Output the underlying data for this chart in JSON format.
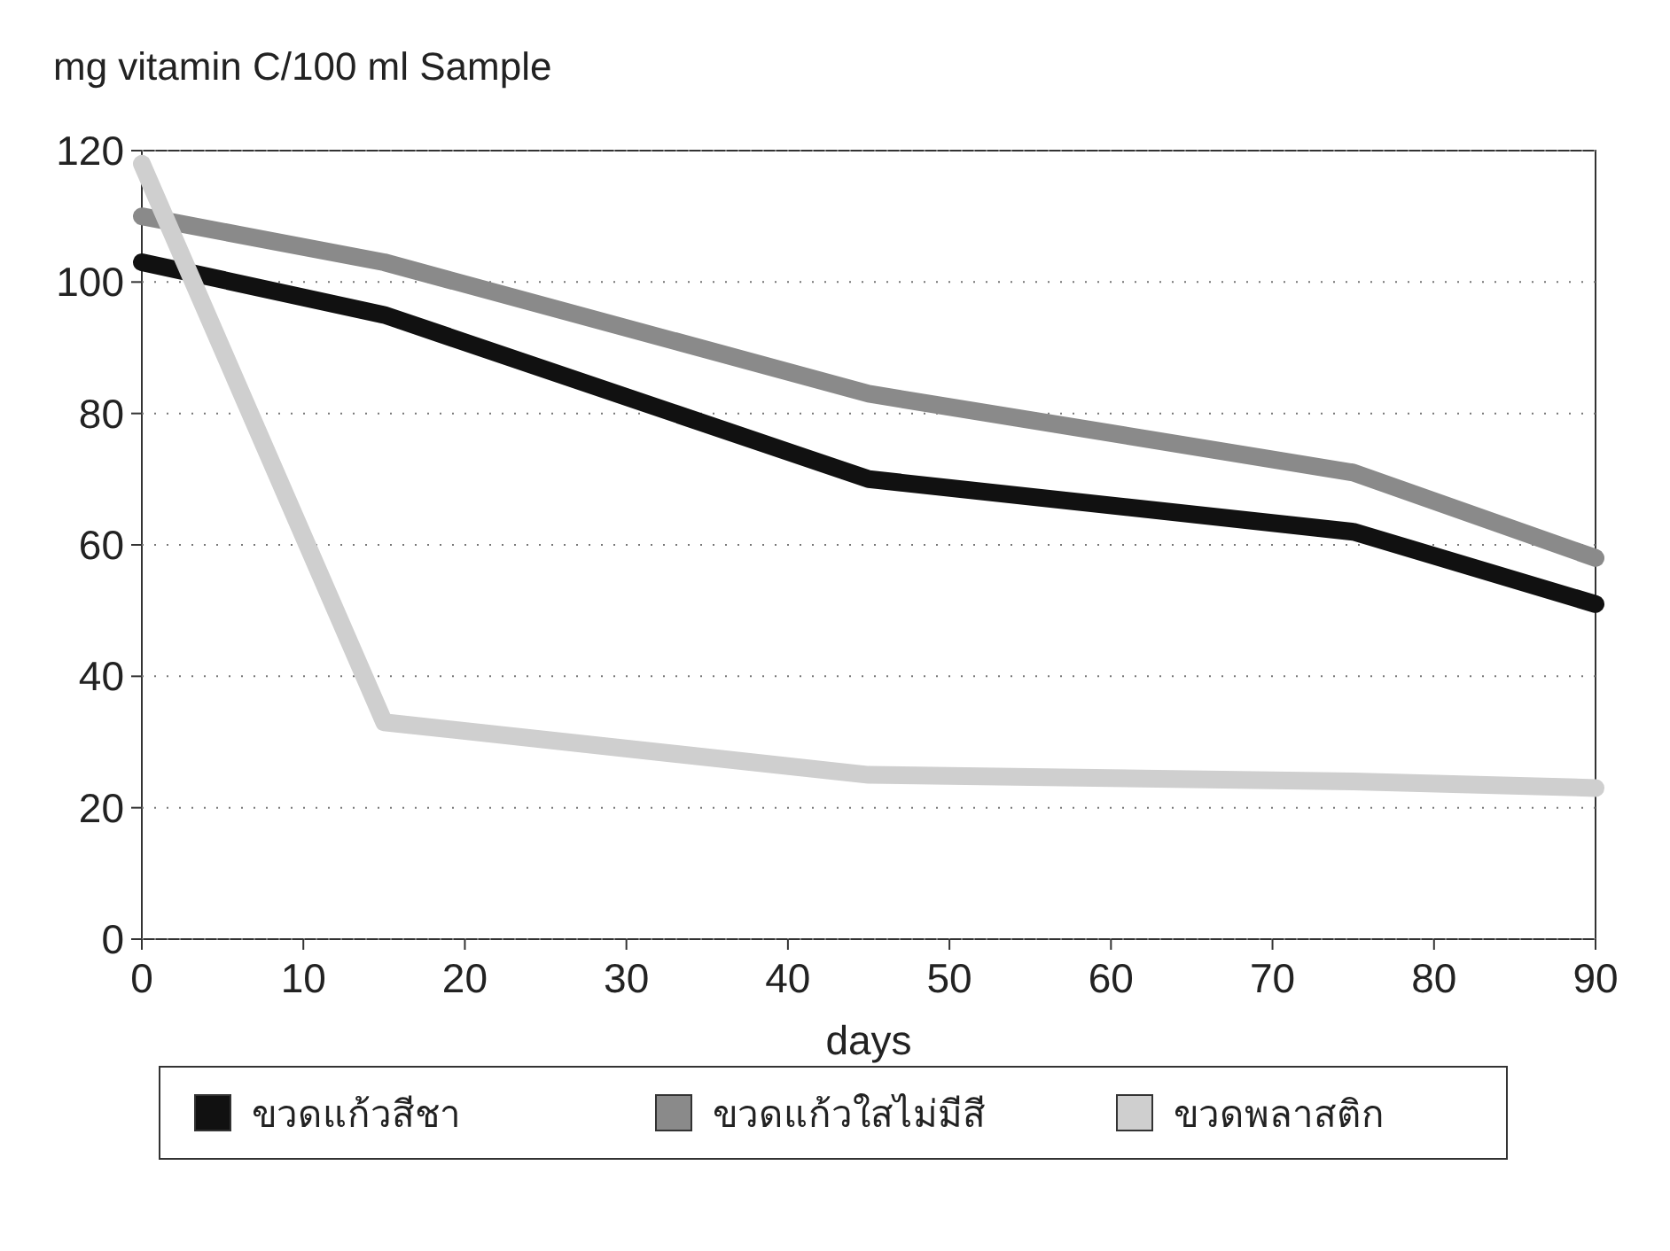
{
  "chart_data": {
    "type": "line",
    "ylabel": "mg vitamin C/100 ml Sample",
    "xlabel": "days",
    "x": [
      0,
      15,
      45,
      75,
      90
    ],
    "series": [
      {
        "name": "ขวดแก้วสีชา",
        "color": "#111111",
        "values": [
          103,
          95,
          70,
          62,
          51
        ]
      },
      {
        "name": "ขวดแก้วใสไม่มีสี",
        "color": "#8a8a8a",
        "values": [
          110,
          103,
          83,
          71,
          58
        ]
      },
      {
        "name": "ขวดพลาสติก",
        "color": "#cfcfcf",
        "values": [
          118,
          33,
          25,
          24,
          23
        ]
      }
    ],
    "xlim": [
      0,
      90
    ],
    "ylim": [
      0,
      120
    ],
    "xticks": [
      0,
      10,
      20,
      30,
      40,
      50,
      60,
      70,
      80,
      90
    ],
    "yticks": [
      0,
      20,
      40,
      60,
      80,
      100,
      120
    ],
    "grid": "y",
    "legend": "bottom",
    "marker": "none",
    "line_style": "solid"
  }
}
